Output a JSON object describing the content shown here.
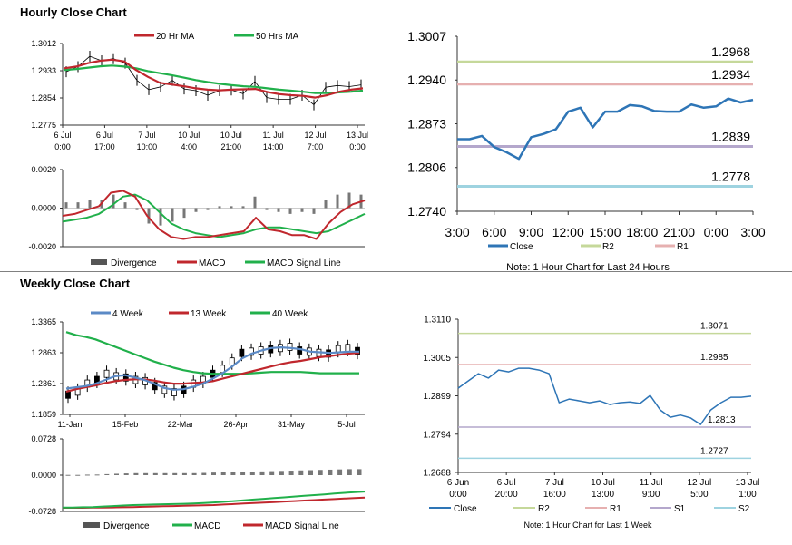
{
  "sections": {
    "hourly_title": "Hourly Close Chart",
    "weekly_title": "Weekly Close Chart"
  },
  "colors": {
    "ma20": "#c0272d",
    "ma50": "#21b04b",
    "close_blue": "#2e75b6",
    "r2": "#c5d89a",
    "r1": "#e6b0b0",
    "s1": "#b4a7cc",
    "s2": "#9ed3e0",
    "ma4": "#5b8ac6",
    "divergence": "#777777"
  },
  "chart_data": [
    {
      "id": "hourly_price",
      "type": "line",
      "legend": [
        "20 Hr MA",
        "50 Hrs MA"
      ],
      "y_ticks": [
        "1.3012",
        "1.2933",
        "1.2854",
        "1.2775"
      ],
      "ylim": [
        1.2775,
        1.3012
      ],
      "x_ticks": [
        [
          "6 Jul",
          "0:00"
        ],
        [
          "6 Jul",
          "17:00"
        ],
        [
          "7 Jul",
          "10:00"
        ],
        [
          "10 Jul",
          "4:00"
        ],
        [
          "10 Jul",
          "21:00"
        ],
        [
          "11 Jul",
          "14:00"
        ],
        [
          "12 Jul",
          "7:00"
        ],
        [
          "13 Jul",
          "0:00"
        ]
      ],
      "series": [
        {
          "name": "Close",
          "values": [
            1.293,
            1.2945,
            1.2975,
            1.2962,
            1.2968,
            1.2955,
            1.2905,
            1.2878,
            1.2886,
            1.2905,
            1.288,
            1.2875,
            1.2862,
            1.2875,
            1.2877,
            1.2866,
            1.2902,
            1.2855,
            1.285,
            1.285,
            1.2862,
            1.2834,
            1.2885,
            1.289,
            1.2887,
            1.2892
          ]
        },
        {
          "name": "20 Hr MA",
          "values": [
            1.294,
            1.2945,
            1.2955,
            1.2962,
            1.2965,
            1.296,
            1.2935,
            1.2915,
            1.2898,
            1.2893,
            1.2888,
            1.2882,
            1.2878,
            1.2876,
            1.2878,
            1.2879,
            1.288,
            1.2871,
            1.2865,
            1.2862,
            1.286,
            1.2855,
            1.2862,
            1.2872,
            1.2878,
            1.2882
          ]
        },
        {
          "name": "50 Hrs MA",
          "values": [
            1.2935,
            1.2938,
            1.2942,
            1.2946,
            1.2948,
            1.2945,
            1.294,
            1.2932,
            1.2926,
            1.292,
            1.2913,
            1.2906,
            1.29,
            1.2895,
            1.2891,
            1.2888,
            1.2886,
            1.2882,
            1.2878,
            1.2875,
            1.2872,
            1.2868,
            1.2868,
            1.287,
            1.2872,
            1.2875
          ]
        }
      ]
    },
    {
      "id": "hourly_macd",
      "type": "line",
      "legend": [
        "Divergence",
        "MACD",
        "MACD Signal Line"
      ],
      "y_ticks": [
        "0.0020",
        "0.0000",
        "-0.0020"
      ],
      "ylim": [
        -0.002,
        0.002
      ],
      "series": [
        {
          "name": "MACD",
          "values": [
            -0.0004,
            -0.0003,
            -0.0001,
            0.0001,
            0.0008,
            0.0009,
            0.0006,
            -0.0004,
            -0.0011,
            -0.0015,
            -0.0016,
            -0.0015,
            -0.0015,
            -0.0014,
            -0.0013,
            -0.0012,
            -0.0005,
            -0.0011,
            -0.0012,
            -0.0014,
            -0.0014,
            -0.0016,
            -0.0008,
            -0.0002,
            0.0002,
            0.0004
          ]
        },
        {
          "name": "MACD Signal Line",
          "values": [
            -0.0007,
            -0.0006,
            -0.0005,
            -0.0003,
            0.0001,
            0.0006,
            0.0007,
            0.0004,
            -0.0002,
            -0.0008,
            -0.0011,
            -0.0013,
            -0.0014,
            -0.0015,
            -0.0014,
            -0.0013,
            -0.0011,
            -0.001,
            -0.001,
            -0.0011,
            -0.0012,
            -0.0013,
            -0.0012,
            -0.0009,
            -0.0006,
            -0.0003
          ]
        },
        {
          "name": "Divergence",
          "values": [
            0.0003,
            0.0003,
            0.0004,
            0.0004,
            0.0007,
            0.0003,
            -0.0001,
            -0.0008,
            -0.0009,
            -0.0007,
            -0.0005,
            -0.0002,
            -0.0001,
            0.0001,
            0.0001,
            0.0001,
            0.0006,
            -0.0001,
            -0.0002,
            -0.0003,
            -0.0002,
            -0.0003,
            0.0004,
            0.0007,
            0.0008,
            0.0007
          ]
        }
      ]
    },
    {
      "id": "hourly_24h",
      "type": "line",
      "y_ticks": [
        "1.3007",
        "1.2940",
        "1.2873",
        "1.2806",
        "1.2740"
      ],
      "ylim": [
        1.274,
        1.3007
      ],
      "x_ticks": [
        "3:00",
        "6:00",
        "9:00",
        "12:00",
        "15:00",
        "18:00",
        "21:00",
        "0:00",
        "3:00"
      ],
      "levels": [
        {
          "name": "R2",
          "value": 1.2968,
          "label": "1.2968"
        },
        {
          "name": "R1",
          "value": 1.2934,
          "label": "1.2934"
        },
        {
          "name": "S1",
          "value": 1.2839,
          "label": "1.2839"
        },
        {
          "name": "S2",
          "value": 1.2778,
          "label": "1.2778"
        }
      ],
      "series": [
        {
          "name": "Close",
          "values": [
            1.285,
            1.285,
            1.2855,
            1.2838,
            1.283,
            1.282,
            1.2853,
            1.2858,
            1.2865,
            1.2892,
            1.2898,
            1.2868,
            1.2892,
            1.2892,
            1.2902,
            1.29,
            1.2893,
            1.2892,
            1.2892,
            1.2903,
            1.2898,
            1.29,
            1.2912,
            1.2906,
            1.291
          ]
        }
      ],
      "legend": [
        "Close",
        "R2",
        "R1"
      ],
      "note": "Note: 1 Hour Chart for Last 24 Hours"
    },
    {
      "id": "weekly_price",
      "type": "line",
      "legend": [
        "4 Week",
        "13 Week",
        "40 Week"
      ],
      "y_ticks": [
        "1.3365",
        "1.2863",
        "1.2361",
        "1.1859"
      ],
      "ylim": [
        1.1859,
        1.3365
      ],
      "x_ticks": [
        "11-Jan",
        "15-Feb",
        "22-Mar",
        "26-Apr",
        "31-May",
        "5-Jul"
      ],
      "series": [
        {
          "name": "Close",
          "values": [
            1.218,
            1.223,
            1.236,
            1.242,
            1.252,
            1.248,
            1.246,
            1.242,
            1.24,
            1.232,
            1.226,
            1.222,
            1.226,
            1.236,
            1.242,
            1.252,
            1.26,
            1.272,
            1.286,
            1.288,
            1.29,
            1.292,
            1.294,
            1.296,
            1.29,
            1.288,
            1.286,
            1.285,
            1.292,
            1.294,
            1.289
          ]
        },
        {
          "name": "4 Week",
          "values": [
            1.228,
            1.23,
            1.232,
            1.236,
            1.242,
            1.248,
            1.25,
            1.246,
            1.242,
            1.236,
            1.229,
            1.226,
            1.227,
            1.231,
            1.236,
            1.244,
            1.253,
            1.264,
            1.277,
            1.285,
            1.29,
            1.294,
            1.295,
            1.294,
            1.292,
            1.288,
            1.287,
            1.286,
            1.287,
            1.288,
            1.288
          ]
        },
        {
          "name": "13 Week",
          "values": [
            1.223,
            1.227,
            1.23,
            1.233,
            1.237,
            1.24,
            1.242,
            1.243,
            1.243,
            1.241,
            1.238,
            1.236,
            1.236,
            1.237,
            1.238,
            1.24,
            1.244,
            1.248,
            1.252,
            1.256,
            1.26,
            1.264,
            1.268,
            1.271,
            1.273,
            1.276,
            1.279,
            1.281,
            1.283,
            1.285,
            1.286
          ]
        },
        {
          "name": "40 Week",
          "values": [
            1.32,
            1.315,
            1.312,
            1.308,
            1.302,
            1.296,
            1.29,
            1.284,
            1.278,
            1.272,
            1.267,
            1.262,
            1.258,
            1.255,
            1.253,
            1.252,
            1.252,
            1.252,
            1.252,
            1.253,
            1.254,
            1.255,
            1.255,
            1.255,
            1.255,
            1.254,
            1.253,
            1.253,
            1.253,
            1.253,
            1.253
          ]
        }
      ]
    },
    {
      "id": "weekly_macd",
      "type": "line",
      "legend": [
        "Divergence",
        "MACD",
        "MACD Signal Line"
      ],
      "y_ticks": [
        "0.0728",
        "0.0000",
        "-0.0728"
      ],
      "ylim": [
        -0.0728,
        0.0728
      ],
      "series": [
        {
          "name": "MACD",
          "values": [
            -0.065,
            -0.065,
            -0.0645,
            -0.064,
            -0.063,
            -0.062,
            -0.061,
            -0.06,
            -0.0595,
            -0.059,
            -0.0585,
            -0.058,
            -0.0575,
            -0.057,
            -0.056,
            -0.0548,
            -0.0535,
            -0.052,
            -0.0505,
            -0.049,
            -0.0475,
            -0.046,
            -0.0445,
            -0.043,
            -0.0415,
            -0.04,
            -0.0385,
            -0.037,
            -0.0355,
            -0.034,
            -0.033
          ]
        },
        {
          "name": "MACD Signal Line",
          "values": [
            -0.0655,
            -0.0655,
            -0.0655,
            -0.0652,
            -0.065,
            -0.0648,
            -0.0645,
            -0.064,
            -0.0635,
            -0.063,
            -0.0625,
            -0.062,
            -0.0615,
            -0.061,
            -0.0605,
            -0.06,
            -0.059,
            -0.058,
            -0.057,
            -0.056,
            -0.055,
            -0.054,
            -0.053,
            -0.052,
            -0.051,
            -0.05,
            -0.049,
            -0.048,
            -0.047,
            -0.046,
            -0.045
          ]
        },
        {
          "name": "Divergence",
          "values": [
            0.0005,
            0.0005,
            0.001,
            0.0012,
            0.002,
            0.0028,
            0.0035,
            0.004,
            0.004,
            0.004,
            0.004,
            0.004,
            0.004,
            0.004,
            0.0045,
            0.0052,
            0.0055,
            0.006,
            0.0065,
            0.007,
            0.0075,
            0.008,
            0.0085,
            0.009,
            0.0095,
            0.01,
            0.0105,
            0.011,
            0.0115,
            0.012,
            0.012
          ]
        }
      ]
    },
    {
      "id": "weekly_1w",
      "type": "line",
      "y_ticks": [
        "1.3110",
        "1.3005",
        "1.2899",
        "1.2794",
        "1.2688"
      ],
      "ylim": [
        1.2688,
        1.311
      ],
      "x_ticks": [
        [
          "6 Jun",
          "0:00"
        ],
        [
          "6 Jul",
          "20:00"
        ],
        [
          "7 Jul",
          "16:00"
        ],
        [
          "10 Jul",
          "13:00"
        ],
        [
          "11 Jul",
          "9:00"
        ],
        [
          "12 Jul",
          "5:00"
        ],
        [
          "13 Jul",
          "1:00"
        ]
      ],
      "levels": [
        {
          "name": "R2",
          "value": 1.3071,
          "label": "1.3071"
        },
        {
          "name": "R1",
          "value": 1.2985,
          "label": "1.2985"
        },
        {
          "name": "S1",
          "value": 1.2813,
          "label": "1.2813"
        },
        {
          "name": "S2",
          "value": 1.2727,
          "label": "1.2727"
        }
      ],
      "series": [
        {
          "name": "Close",
          "values": [
            1.292,
            1.294,
            1.296,
            1.2948,
            1.297,
            1.2965,
            1.2975,
            1.2975,
            1.297,
            1.296,
            1.288,
            1.289,
            1.2885,
            1.288,
            1.2885,
            1.2875,
            1.288,
            1.2882,
            1.2878,
            1.29,
            1.286,
            1.284,
            1.2846,
            1.2838,
            1.282,
            1.286,
            1.288,
            1.2895,
            1.2895,
            1.2898
          ]
        }
      ],
      "legend": [
        "Close",
        "R2",
        "R1",
        "S1",
        "S2"
      ],
      "note": "Note: 1 Hour Chart for Last 1 Week"
    }
  ]
}
